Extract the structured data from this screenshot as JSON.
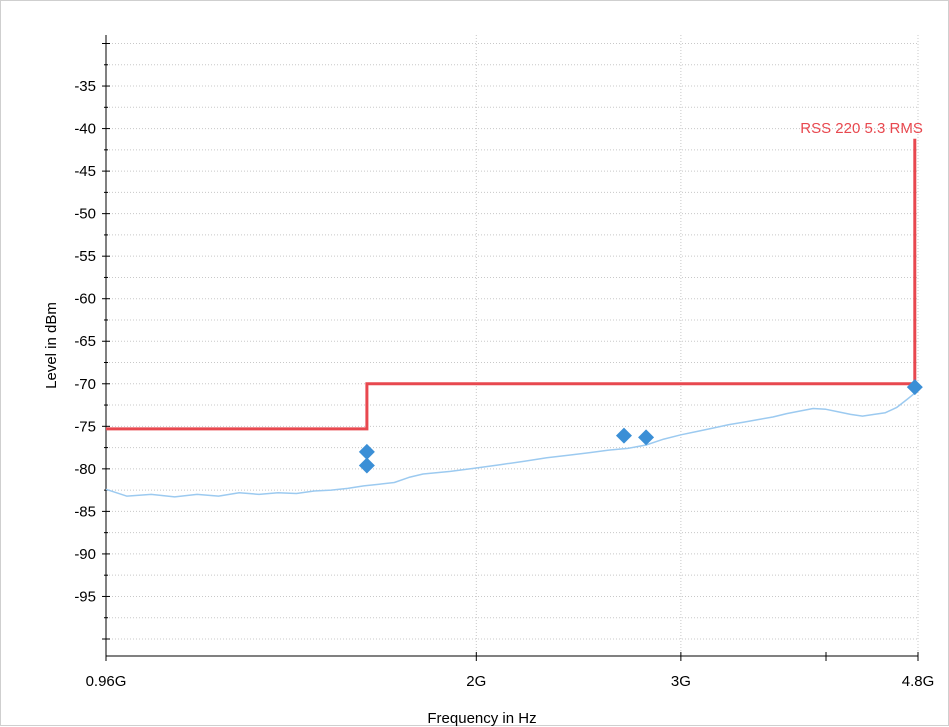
{
  "chart_data": {
    "type": "line",
    "xlabel": "Frequency in Hz",
    "ylabel": "Level in dBm",
    "x_scale": "log",
    "xlim": [
      960000000,
      4800000000
    ],
    "ylim": [
      -102,
      -29
    ],
    "grid": true,
    "y_ticks": [
      -35,
      -40,
      -45,
      -50,
      -55,
      -60,
      -65,
      -70,
      -75,
      -80,
      -85,
      -90,
      -95
    ],
    "y_tick_labels": [
      "-35",
      "-40",
      "-45",
      "-50",
      "-55",
      "-60",
      "-65",
      "-70",
      "-75",
      "-80",
      "-85",
      "-90",
      "-95"
    ],
    "x_ticks": [
      960000000,
      2000000000,
      3000000000,
      4800000000
    ],
    "x_tick_labels": [
      "0.96G",
      "2G",
      "3G",
      "4.8G"
    ],
    "colors": {
      "limit": "#e8484f",
      "trace": "#9ccaf0",
      "markers": "#3b8fd6",
      "grid": "#c8c8c8"
    },
    "series": [
      {
        "name": "RSS 220 5.3 RMS",
        "kind": "limit",
        "points": [
          [
            960000000,
            -75.3
          ],
          [
            1610000000,
            -75.3
          ],
          [
            1610000000,
            -70.0
          ],
          [
            4770000000,
            -70.0
          ],
          [
            4770000000,
            -41.2
          ]
        ]
      },
      {
        "kind": "trace",
        "points": [
          [
            960000000,
            -82.4
          ],
          [
            1000000000,
            -83.2
          ],
          [
            1050000000,
            -83.0
          ],
          [
            1100000000,
            -83.3
          ],
          [
            1150000000,
            -83.0
          ],
          [
            1200000000,
            -83.2
          ],
          [
            1250000000,
            -82.8
          ],
          [
            1300000000,
            -83.0
          ],
          [
            1350000000,
            -82.8
          ],
          [
            1400000000,
            -82.9
          ],
          [
            1450000000,
            -82.6
          ],
          [
            1500000000,
            -82.5
          ],
          [
            1550000000,
            -82.3
          ],
          [
            1600000000,
            -82.0
          ],
          [
            1650000000,
            -81.8
          ],
          [
            1700000000,
            -81.6
          ],
          [
            1750000000,
            -81.0
          ],
          [
            1800000000,
            -80.6
          ],
          [
            1900000000,
            -80.3
          ],
          [
            2000000000,
            -79.9
          ],
          [
            2100000000,
            -79.5
          ],
          [
            2200000000,
            -79.1
          ],
          [
            2300000000,
            -78.7
          ],
          [
            2400000000,
            -78.4
          ],
          [
            2500000000,
            -78.1
          ],
          [
            2600000000,
            -77.8
          ],
          [
            2700000000,
            -77.6
          ],
          [
            2800000000,
            -77.2
          ],
          [
            2900000000,
            -76.5
          ],
          [
            3000000000,
            -76.0
          ],
          [
            3100000000,
            -75.6
          ],
          [
            3200000000,
            -75.2
          ],
          [
            3300000000,
            -74.8
          ],
          [
            3400000000,
            -74.5
          ],
          [
            3500000000,
            -74.2
          ],
          [
            3600000000,
            -73.9
          ],
          [
            3700000000,
            -73.5
          ],
          [
            3800000000,
            -73.2
          ],
          [
            3900000000,
            -72.9
          ],
          [
            4000000000,
            -73.0
          ],
          [
            4100000000,
            -73.3
          ],
          [
            4200000000,
            -73.6
          ],
          [
            4300000000,
            -73.8
          ],
          [
            4400000000,
            -73.6
          ],
          [
            4500000000,
            -73.4
          ],
          [
            4600000000,
            -72.8
          ],
          [
            4700000000,
            -71.8
          ],
          [
            4800000000,
            -70.8
          ]
        ]
      },
      {
        "kind": "markers",
        "points": [
          [
            1610000000,
            -78.0
          ],
          [
            1610000000,
            -79.6
          ],
          [
            2680000000,
            -76.1
          ],
          [
            2800000000,
            -76.3
          ],
          [
            4770000000,
            -70.4
          ]
        ]
      }
    ]
  }
}
